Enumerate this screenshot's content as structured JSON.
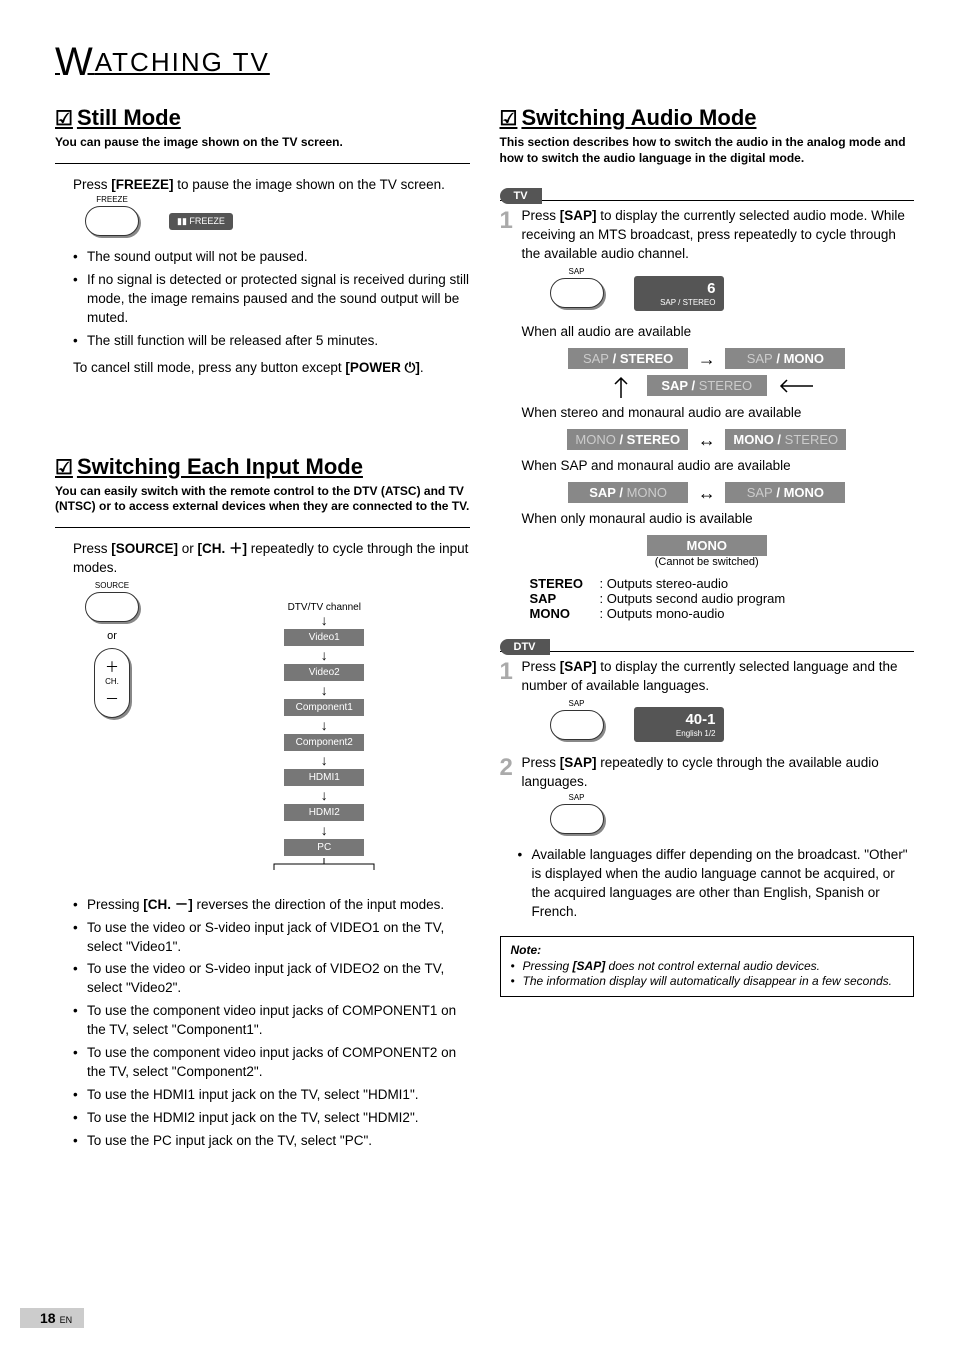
{
  "page": {
    "header_letter": "W",
    "header_rest": "ATCHING  TV",
    "page_number": "18",
    "page_lang": "EN"
  },
  "still_mode": {
    "title": "Still Mode",
    "subtitle": "You can pause the image shown on the TV screen.",
    "instruction_pre": "Press ",
    "instruction_key": "[FREEZE]",
    "instruction_post": " to pause the image shown on the TV screen.",
    "btn_label": "FREEZE",
    "osd_text": "▮▮  FREEZE",
    "bullets": [
      "The sound output will not be paused.",
      "If no signal is detected or protected signal is received during still mode, the image remains paused and the sound output will be muted.",
      "The still function will be released after 5 minutes."
    ],
    "cancel_pre": "To cancel still mode, press any button except ",
    "cancel_key": "[POWER ⏻]",
    "cancel_post": "."
  },
  "input_mode": {
    "title": "Switching Each Input Mode",
    "subtitle": "You can easily switch with the remote control to the DTV (ATSC) and TV (NTSC) or to access external devices when they are connected to the TV.",
    "instruction_pre": "Press ",
    "instruction_key1": "[SOURCE]",
    "instruction_mid": " or ",
    "instruction_key2": "[CH. ＋]",
    "instruction_post": " repeatedly to cycle through the input modes.",
    "source_label": "SOURCE",
    "or_text": "or",
    "ch_label": "CH.",
    "chain_top": "DTV/TV channel",
    "chain": [
      "Video1",
      "Video2",
      "Component1",
      "Component2",
      "HDMI1",
      "HDMI2",
      "PC"
    ],
    "bullets": [
      "Pressing <b>[CH. －]</b> reverses the direction of the input modes.",
      "To use the video or S-video input jack of VIDEO1 on the TV, select \"Video1\".",
      "To use the video or S-video input jack of VIDEO2 on the TV, select \"Video2\".",
      "To use the component video input jacks of COMPONENT1 on the TV, select \"Component1\".",
      "To use the component video input jacks of COMPONENT2 on the TV, select \"Component2\".",
      "To use the HDMI1 input jack on the TV, select \"HDMI1\".",
      "To use the HDMI2 input jack on the TV, select \"HDMI2\".",
      "To use the PC input jack on the TV, select \"PC\"."
    ]
  },
  "audio_mode": {
    "title": "Switching Audio Mode",
    "subtitle": "This section describes how to switch the audio in the analog mode and how to switch the audio language in the digital mode.",
    "tv_tag": "TV",
    "dtv_tag": "DTV",
    "tv_step1_pre": "Press ",
    "tv_step1_key": "[SAP]",
    "tv_step1_post": " to display the currently selected audio mode. While receiving an MTS broadcast, press repeatedly to cycle through the available audio channel.",
    "sap_label": "SAP",
    "osd_channel": "6",
    "osd_mode": "SAP / STEREO",
    "when_all": "When all audio are available",
    "pill_sap_stereo_a": "SAP",
    "pill_sap_stereo_b": " / STEREO",
    "pill_sap_mono_a": "SAP",
    "pill_sap_mono_b": " / MONO",
    "pill_sap_stereo2_a": "SAP / ",
    "pill_sap_stereo2_b": "STEREO",
    "when_stereo_mono": "When stereo and monaural audio are available",
    "pill_mono_stereo_a": "MONO",
    "pill_mono_stereo_b": " / STEREO",
    "pill_mono_stereo2_a": "MONO / ",
    "pill_mono_stereo2_b": "STEREO",
    "when_sap_mono": "When SAP and monaural audio are available",
    "pill_sapmono1_a": "SAP / ",
    "pill_sapmono1_b": "MONO",
    "pill_sapmono2_a": "SAP",
    "pill_sapmono2_b": " / MONO",
    "when_mono_only": "When only monaural audio is available",
    "mono_pill": "MONO",
    "cannot_switch": "(Cannot be switched)",
    "def_stereo_t": "STEREO",
    "def_stereo_v": ": Outputs stereo-audio",
    "def_sap_t": "SAP",
    "def_sap_v": ": Outputs second audio program",
    "def_mono_t": "MONO",
    "def_mono_v": ": Outputs mono-audio",
    "dtv_step1_pre": "Press ",
    "dtv_step1_key": "[SAP]",
    "dtv_step1_post": " to display the currently selected language and the number of available languages.",
    "dtv_osd_channel": "40-1",
    "dtv_osd_lang": "English 1/2",
    "dtv_step2_pre": "Press ",
    "dtv_step2_key": "[SAP]",
    "dtv_step2_post": " repeatedly to cycle through the available audio languages.",
    "dtv_bullet": "Available languages differ depending on the broadcast. \"Other\" is displayed when the audio language cannot be acquired, or the acquired languages are other than English, Spanish or French.",
    "note_title": "Note:",
    "note_items": [
      "Pressing <b>[SAP]</b> does not control external audio devices.",
      "The information display will automatically disappear in a few seconds."
    ]
  }
}
